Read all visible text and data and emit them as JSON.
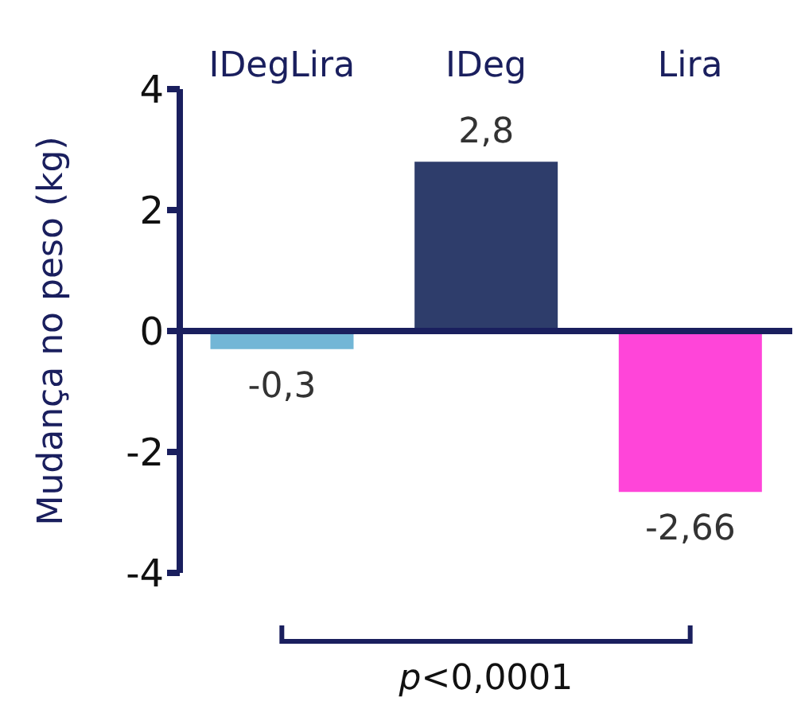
{
  "chart_data": {
    "type": "bar",
    "ylabel": "Mudança no peso (kg)",
    "categories": [
      "IDegLira",
      "IDeg",
      "Lira"
    ],
    "values": [
      -0.3,
      2.8,
      -2.66
    ],
    "colors": [
      "#72b6d6",
      "#2e3d6b",
      "#ff45d9"
    ],
    "value_labels": [
      "-0,3",
      "2,8",
      "-2,66"
    ],
    "ylim": [
      -4,
      4
    ],
    "yticks": [
      -4,
      -2,
      0,
      2,
      4
    ],
    "ref_lines": [
      {
        "axis": "y",
        "value": 0,
        "color": "#1a1f5e"
      }
    ],
    "annotations": [
      "p<0,0001"
    ],
    "grid": false,
    "legend": false
  }
}
